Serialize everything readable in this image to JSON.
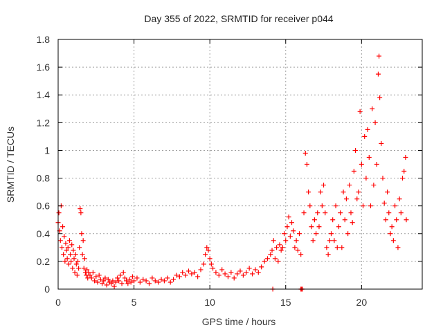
{
  "chart_data": {
    "type": "scatter",
    "title": "Day 355 of 2022, SRMTID for receiver p044",
    "xlabel": "GPS time / hours",
    "ylabel": "SRMTID / TECUs",
    "xlim": [
      0,
      24
    ],
    "ylim": [
      0,
      1.8
    ],
    "xticks": [
      0,
      5,
      10,
      15,
      20
    ],
    "xtick_labels": [
      "0",
      "5",
      "10",
      "15",
      "20"
    ],
    "yticks": [
      0,
      0.2,
      0.4,
      0.6,
      0.8,
      1,
      1.2,
      1.4,
      1.6,
      1.8
    ],
    "ytick_labels": [
      "0",
      "0.2",
      "0.4",
      "0.6",
      "0.8",
      "1",
      "1.2",
      "1.4",
      "1.6",
      "1.8"
    ],
    "grid": true,
    "marker": "+",
    "color": "#ff0000",
    "series": [
      {
        "name": "SRMTID",
        "points": [
          [
            0.0,
            0.48
          ],
          [
            0.05,
            0.55
          ],
          [
            0.1,
            0.42
          ],
          [
            0.15,
            0.35
          ],
          [
            0.2,
            0.6
          ],
          [
            0.25,
            0.3
          ],
          [
            0.3,
            0.45
          ],
          [
            0.35,
            0.25
          ],
          [
            0.4,
            0.38
          ],
          [
            0.45,
            0.2
          ],
          [
            0.5,
            0.33
          ],
          [
            0.55,
            0.28
          ],
          [
            0.6,
            0.22
          ],
          [
            0.65,
            0.3
          ],
          [
            0.7,
            0.18
          ],
          [
            0.75,
            0.35
          ],
          [
            0.8,
            0.25
          ],
          [
            0.85,
            0.2
          ],
          [
            0.9,
            0.32
          ],
          [
            0.95,
            0.15
          ],
          [
            1.0,
            0.28
          ],
          [
            1.05,
            0.22
          ],
          [
            1.1,
            0.12
          ],
          [
            1.15,
            0.25
          ],
          [
            1.2,
            0.18
          ],
          [
            1.25,
            0.1
          ],
          [
            1.3,
            0.2
          ],
          [
            1.35,
            0.15
          ],
          [
            1.4,
            0.3
          ],
          [
            1.45,
            0.58
          ],
          [
            1.5,
            0.55
          ],
          [
            1.55,
            0.4
          ],
          [
            1.6,
            0.25
          ],
          [
            1.65,
            0.35
          ],
          [
            1.7,
            0.15
          ],
          [
            1.75,
            0.22
          ],
          [
            1.8,
            0.12
          ],
          [
            1.85,
            0.1
          ],
          [
            1.9,
            0.14
          ],
          [
            1.95,
            0.08
          ],
          [
            2.0,
            0.12
          ],
          [
            2.1,
            0.1
          ],
          [
            2.2,
            0.08
          ],
          [
            2.3,
            0.12
          ],
          [
            2.4,
            0.06
          ],
          [
            2.5,
            0.09
          ],
          [
            2.6,
            0.05
          ],
          [
            2.7,
            0.1
          ],
          [
            2.8,
            0.07
          ],
          [
            2.9,
            0.04
          ],
          [
            3.0,
            0.06
          ],
          [
            3.1,
            0.08
          ],
          [
            3.2,
            0.03
          ],
          [
            3.3,
            0.07
          ],
          [
            3.4,
            0.05
          ],
          [
            3.5,
            0.04
          ],
          [
            3.6,
            0.06
          ],
          [
            3.7,
            0.02
          ],
          [
            3.8,
            0.05
          ],
          [
            3.9,
            0.08
          ],
          [
            4.0,
            0.06
          ],
          [
            4.1,
            0.1
          ],
          [
            4.2,
            0.04
          ],
          [
            4.3,
            0.12
          ],
          [
            4.4,
            0.08
          ],
          [
            4.5,
            0.06
          ],
          [
            4.6,
            0.04
          ],
          [
            4.7,
            0.07
          ],
          [
            4.8,
            0.05
          ],
          [
            4.9,
            0.09
          ],
          [
            5.0,
            0.06
          ],
          [
            5.2,
            0.08
          ],
          [
            5.4,
            0.05
          ],
          [
            5.6,
            0.07
          ],
          [
            5.8,
            0.06
          ],
          [
            6.0,
            0.04
          ],
          [
            6.2,
            0.08
          ],
          [
            6.4,
            0.06
          ],
          [
            6.6,
            0.05
          ],
          [
            6.8,
            0.07
          ],
          [
            7.0,
            0.06
          ],
          [
            7.2,
            0.08
          ],
          [
            7.4,
            0.05
          ],
          [
            7.6,
            0.07
          ],
          [
            7.8,
            0.1
          ],
          [
            8.0,
            0.09
          ],
          [
            8.2,
            0.12
          ],
          [
            8.4,
            0.1
          ],
          [
            8.6,
            0.13
          ],
          [
            8.8,
            0.11
          ],
          [
            9.0,
            0.12
          ],
          [
            9.2,
            0.09
          ],
          [
            9.4,
            0.14
          ],
          [
            9.6,
            0.18
          ],
          [
            9.7,
            0.25
          ],
          [
            9.8,
            0.3
          ],
          [
            9.9,
            0.28
          ],
          [
            10.0,
            0.22
          ],
          [
            10.1,
            0.18
          ],
          [
            10.2,
            0.15
          ],
          [
            10.4,
            0.12
          ],
          [
            10.6,
            0.1
          ],
          [
            10.8,
            0.14
          ],
          [
            11.0,
            0.11
          ],
          [
            11.2,
            0.09
          ],
          [
            11.4,
            0.12
          ],
          [
            11.6,
            0.08
          ],
          [
            11.8,
            0.11
          ],
          [
            12.0,
            0.13
          ],
          [
            12.2,
            0.1
          ],
          [
            12.4,
            0.12
          ],
          [
            12.6,
            0.15
          ],
          [
            12.8,
            0.11
          ],
          [
            13.0,
            0.14
          ],
          [
            13.2,
            0.12
          ],
          [
            13.4,
            0.16
          ],
          [
            13.6,
            0.2
          ],
          [
            13.8,
            0.22
          ],
          [
            14.0,
            0.25
          ],
          [
            14.1,
            0.28
          ],
          [
            14.2,
            0.35
          ],
          [
            14.3,
            0.22
          ],
          [
            14.4,
            0.3
          ],
          [
            14.5,
            0.2
          ],
          [
            14.6,
            0.32
          ],
          [
            14.7,
            0.28
          ],
          [
            14.8,
            0.3
          ],
          [
            14.9,
            0.4
          ],
          [
            15.0,
            0.35
          ],
          [
            15.1,
            0.45
          ],
          [
            15.2,
            0.52
          ],
          [
            15.3,
            0.38
          ],
          [
            15.4,
            0.48
          ],
          [
            15.5,
            0.42
          ],
          [
            15.6,
            0.3
          ],
          [
            15.7,
            0.35
          ],
          [
            15.8,
            0.28
          ],
          [
            15.9,
            0.4
          ],
          [
            16.0,
            0.25
          ],
          [
            16.1,
            0.0
          ],
          [
            16.2,
            0.55
          ],
          [
            16.3,
            0.98
          ],
          [
            16.4,
            0.9
          ],
          [
            16.5,
            0.7
          ],
          [
            16.6,
            0.6
          ],
          [
            16.7,
            0.45
          ],
          [
            16.8,
            0.35
          ],
          [
            16.9,
            0.5
          ],
          [
            17.0,
            0.4
          ],
          [
            17.1,
            0.55
          ],
          [
            17.2,
            0.45
          ],
          [
            17.3,
            0.7
          ],
          [
            17.4,
            0.6
          ],
          [
            17.5,
            0.75
          ],
          [
            17.6,
            0.55
          ],
          [
            17.7,
            0.3
          ],
          [
            17.8,
            0.25
          ],
          [
            17.9,
            0.35
          ],
          [
            18.0,
            0.4
          ],
          [
            18.1,
            0.5
          ],
          [
            18.2,
            0.35
          ],
          [
            18.3,
            0.6
          ],
          [
            18.4,
            0.3
          ],
          [
            18.5,
            0.45
          ],
          [
            18.6,
            0.55
          ],
          [
            18.7,
            0.3
          ],
          [
            18.8,
            0.7
          ],
          [
            18.9,
            0.5
          ],
          [
            19.0,
            0.65
          ],
          [
            19.1,
            0.4
          ],
          [
            19.2,
            0.75
          ],
          [
            19.3,
            0.55
          ],
          [
            19.4,
            0.48
          ],
          [
            19.5,
            0.85
          ],
          [
            19.6,
            1.0
          ],
          [
            19.7,
            0.65
          ],
          [
            19.8,
            0.7
          ],
          [
            19.9,
            1.28
          ],
          [
            20.0,
            0.9
          ],
          [
            20.1,
            0.6
          ],
          [
            20.2,
            1.1
          ],
          [
            20.3,
            0.8
          ],
          [
            20.4,
            1.15
          ],
          [
            20.5,
            0.95
          ],
          [
            20.6,
            0.6
          ],
          [
            20.7,
            1.3
          ],
          [
            20.8,
            0.75
          ],
          [
            20.9,
            1.2
          ],
          [
            21.0,
            0.9
          ],
          [
            21.1,
            1.55
          ],
          [
            21.15,
            1.68
          ],
          [
            21.2,
            1.38
          ],
          [
            21.3,
            1.05
          ],
          [
            21.4,
            0.8
          ],
          [
            21.5,
            0.62
          ],
          [
            21.6,
            0.5
          ],
          [
            21.7,
            0.7
          ],
          [
            21.8,
            0.55
          ],
          [
            21.9,
            0.4
          ],
          [
            22.0,
            0.45
          ],
          [
            22.1,
            0.35
          ],
          [
            22.2,
            0.6
          ],
          [
            22.3,
            0.5
          ],
          [
            22.4,
            0.3
          ],
          [
            22.5,
            0.65
          ],
          [
            22.6,
            0.55
          ],
          [
            22.7,
            0.8
          ],
          [
            22.8,
            0.85
          ],
          [
            22.9,
            0.95
          ],
          [
            22.95,
            0.5
          ],
          [
            14.15,
            0.0
          ],
          [
            16.0,
            0.0
          ],
          [
            16.05,
            0.0
          ]
        ]
      }
    ]
  }
}
